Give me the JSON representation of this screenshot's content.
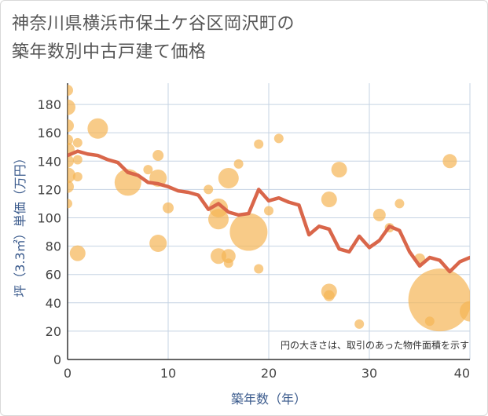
{
  "chart_data": {
    "type": "scatter",
    "title_lines": [
      "神奈川県横浜市保土ケ谷区岡沢町の",
      "築年数別中古戸建て価格"
    ],
    "xlabel": "築年数（年）",
    "ylabel": "坪（3.3㎡）単価（万円）",
    "xlim": [
      0,
      40
    ],
    "ylim": [
      0,
      195
    ],
    "xticks": [
      0,
      10,
      20,
      30,
      40
    ],
    "yticks": [
      0,
      20,
      40,
      60,
      80,
      100,
      120,
      140,
      160,
      180
    ],
    "annotation": "円の大きさは、取引のあった物件面積を示す",
    "colors": {
      "bubble": "#f5b555",
      "line": "#d9664a",
      "grid": "#c5d3e3"
    },
    "bubbles": [
      {
        "x": 0,
        "y": 190,
        "s": 7
      },
      {
        "x": 0,
        "y": 178,
        "s": 10
      },
      {
        "x": 0,
        "y": 165,
        "s": 8
      },
      {
        "x": 0,
        "y": 155,
        "s": 7
      },
      {
        "x": 0,
        "y": 148,
        "s": 9
      },
      {
        "x": 0,
        "y": 140,
        "s": 8
      },
      {
        "x": 0,
        "y": 130,
        "s": 10
      },
      {
        "x": 0,
        "y": 122,
        "s": 8
      },
      {
        "x": 0,
        "y": 110,
        "s": 6
      },
      {
        "x": 1,
        "y": 153,
        "s": 6
      },
      {
        "x": 1,
        "y": 141,
        "s": 6
      },
      {
        "x": 1,
        "y": 129,
        "s": 6
      },
      {
        "x": 1,
        "y": 75,
        "s": 10
      },
      {
        "x": 3,
        "y": 163,
        "s": 13
      },
      {
        "x": 6,
        "y": 125,
        "s": 17
      },
      {
        "x": 8,
        "y": 134,
        "s": 6
      },
      {
        "x": 9,
        "y": 144,
        "s": 7
      },
      {
        "x": 9,
        "y": 128,
        "s": 11
      },
      {
        "x": 9,
        "y": 82,
        "s": 11
      },
      {
        "x": 10,
        "y": 107,
        "s": 7
      },
      {
        "x": 14,
        "y": 120,
        "s": 6
      },
      {
        "x": 15,
        "y": 107,
        "s": 12
      },
      {
        "x": 15,
        "y": 99,
        "s": 13
      },
      {
        "x": 15,
        "y": 73,
        "s": 10
      },
      {
        "x": 16,
        "y": 128,
        "s": 13
      },
      {
        "x": 16,
        "y": 73,
        "s": 9
      },
      {
        "x": 16,
        "y": 68,
        "s": 6
      },
      {
        "x": 17,
        "y": 138,
        "s": 6
      },
      {
        "x": 18,
        "y": 90,
        "s": 24
      },
      {
        "x": 19,
        "y": 152,
        "s": 6
      },
      {
        "x": 19,
        "y": 64,
        "s": 6
      },
      {
        "x": 20,
        "y": 105,
        "s": 6
      },
      {
        "x": 21,
        "y": 156,
        "s": 6
      },
      {
        "x": 26,
        "y": 113,
        "s": 10
      },
      {
        "x": 26,
        "y": 48,
        "s": 10
      },
      {
        "x": 26,
        "y": 45,
        "s": 7
      },
      {
        "x": 27,
        "y": 134,
        "s": 10
      },
      {
        "x": 29,
        "y": 25,
        "s": 6
      },
      {
        "x": 31,
        "y": 102,
        "s": 8
      },
      {
        "x": 32,
        "y": 93,
        "s": 6
      },
      {
        "x": 33,
        "y": 110,
        "s": 6
      },
      {
        "x": 35,
        "y": 71,
        "s": 7
      },
      {
        "x": 36,
        "y": 27,
        "s": 6
      },
      {
        "x": 37,
        "y": 42,
        "s": 40
      },
      {
        "x": 38,
        "y": 140,
        "s": 9
      },
      {
        "x": 40,
        "y": 34,
        "s": 13
      }
    ],
    "line": {
      "x": [
        0,
        1,
        2,
        3,
        4,
        5,
        6,
        7,
        8,
        9,
        10,
        11,
        12,
        13,
        14,
        15,
        16,
        17,
        18,
        19,
        20,
        21,
        22,
        23,
        24,
        25,
        26,
        27,
        28,
        29,
        30,
        31,
        32,
        33,
        34,
        35,
        36,
        37,
        38,
        39,
        40
      ],
      "y": [
        144,
        147,
        145,
        144,
        141,
        139,
        132,
        130,
        125,
        124,
        122,
        119,
        118,
        116,
        106,
        110,
        104,
        102,
        103,
        120,
        112,
        114,
        111,
        109,
        88,
        94,
        92,
        78,
        76,
        87,
        79,
        84,
        94,
        91,
        76,
        66,
        72,
        70,
        62,
        69,
        72
      ]
    }
  }
}
